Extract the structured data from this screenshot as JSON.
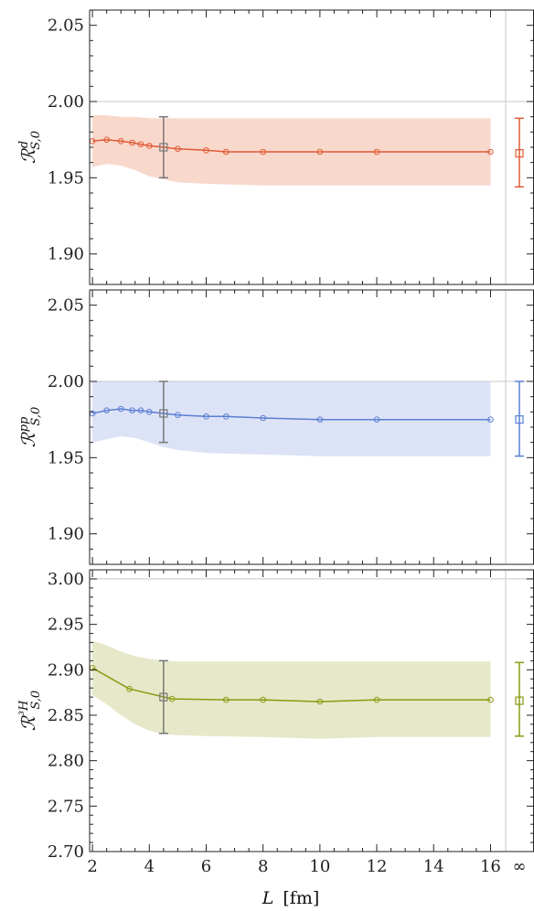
{
  "chart_data": [
    {
      "type": "line",
      "ylabel": "R^d_{S,0}",
      "ylabel_main": "ℛ",
      "ylabel_super": "d",
      "ylabel_sub": "S,0",
      "ylim": [
        1.88,
        2.06
      ],
      "yticks": [
        1.9,
        1.95,
        2.0,
        2.05
      ],
      "ytick_labels": [
        "1.90",
        "1.95",
        "2.00",
        "2.05"
      ],
      "reference_line": 2.0,
      "color": "#e05a35",
      "band_color": "#f9d8cc",
      "series": [
        {
          "x": [
            2.0,
            2.5,
            3.0,
            3.4,
            3.7,
            4.0,
            5.0,
            6.0,
            6.7,
            8.0,
            10.0,
            12.0,
            16.0
          ],
          "values": [
            1.974,
            1.975,
            1.974,
            1.973,
            1.972,
            1.971,
            1.969,
            1.968,
            1.967,
            1.967,
            1.967,
            1.967,
            1.967
          ]
        }
      ],
      "band": {
        "x": [
          2.0,
          2.5,
          3.0,
          3.5,
          4.0,
          4.5,
          5.0,
          6.0,
          8.0,
          10.0,
          12.0,
          16.0
        ],
        "upper": [
          1.991,
          1.991,
          1.99,
          1.99,
          1.989,
          1.989,
          1.989,
          1.989,
          1.989,
          1.989,
          1.989,
          1.989
        ],
        "lower": [
          1.957,
          1.959,
          1.958,
          1.955,
          1.951,
          1.949,
          1.947,
          1.946,
          1.945,
          1.945,
          1.945,
          1.945
        ]
      },
      "marker_point": {
        "x": 4.5,
        "y": 1.97,
        "err_low": 1.95,
        "err_high": 1.99
      },
      "infinity_point": {
        "y": 1.966,
        "err_low": 1.944,
        "err_high": 1.989
      }
    },
    {
      "type": "line",
      "ylabel": "R^pp_{S,0}",
      "ylabel_main": "ℛ",
      "ylabel_super": "pp",
      "ylabel_sub": "S,0",
      "ylim": [
        1.88,
        2.06
      ],
      "yticks": [
        1.9,
        1.95,
        2.0,
        2.05
      ],
      "ytick_labels": [
        "1.90",
        "1.95",
        "2.00",
        "2.05"
      ],
      "reference_line": 2.0,
      "color": "#5a7fd4",
      "band_color": "#dde3f6",
      "series": [
        {
          "x": [
            2.0,
            2.5,
            3.0,
            3.4,
            3.7,
            4.0,
            5.0,
            6.0,
            6.7,
            8.0,
            10.0,
            12.0,
            16.0
          ],
          "values": [
            1.979,
            1.981,
            1.982,
            1.981,
            1.981,
            1.98,
            1.978,
            1.977,
            1.977,
            1.976,
            1.975,
            1.975,
            1.975
          ]
        }
      ],
      "band": {
        "x": [
          2.0,
          2.5,
          3.0,
          3.5,
          4.0,
          4.5,
          5.0,
          6.0,
          8.0,
          10.0,
          12.0,
          16.0
        ],
        "upper": [
          2.0,
          2.0,
          2.0,
          2.0,
          2.0,
          2.0,
          2.0,
          2.0,
          2.0,
          2.0,
          2.0,
          2.0
        ],
        "lower": [
          1.96,
          1.962,
          1.964,
          1.963,
          1.96,
          1.957,
          1.955,
          1.953,
          1.952,
          1.951,
          1.951,
          1.951
        ]
      },
      "marker_point": {
        "x": 4.5,
        "y": 1.979,
        "err_low": 1.96,
        "err_high": 2.0
      },
      "infinity_point": {
        "y": 1.975,
        "err_low": 1.951,
        "err_high": 2.0
      }
    },
    {
      "type": "line",
      "ylabel": "R^3He_{S,0}",
      "ylabel_main": "ℛ",
      "ylabel_super": "³H",
      "ylabel_sub": "S,0",
      "ylim": [
        2.7,
        3.01
      ],
      "yticks": [
        2.7,
        2.75,
        2.8,
        2.85,
        2.9,
        2.95,
        3.0
      ],
      "ytick_labels": [
        "2.70",
        "2.75",
        "2.80",
        "2.85",
        "2.90",
        "2.95",
        "3.00"
      ],
      "reference_line": 3.0,
      "color": "#8a9a10",
      "band_color": "#e6e8c9",
      "series": [
        {
          "x": [
            2.0,
            3.3,
            4.8,
            6.7,
            8.0,
            10.0,
            12.0,
            16.0
          ],
          "values": [
            2.902,
            2.879,
            2.868,
            2.867,
            2.867,
            2.865,
            2.867,
            2.867
          ]
        }
      ],
      "band": {
        "x": [
          2.0,
          2.5,
          3.0,
          3.5,
          4.0,
          4.5,
          5.0,
          6.0,
          8.0,
          10.0,
          12.0,
          16.0
        ],
        "upper": [
          2.932,
          2.927,
          2.92,
          2.915,
          2.912,
          2.91,
          2.909,
          2.909,
          2.909,
          2.909,
          2.909,
          2.909
        ],
        "lower": [
          2.872,
          2.862,
          2.85,
          2.84,
          2.833,
          2.829,
          2.828,
          2.827,
          2.826,
          2.824,
          2.826,
          2.826
        ]
      },
      "marker_point": {
        "x": 4.5,
        "y": 2.87,
        "err_low": 2.83,
        "err_high": 2.91
      },
      "infinity_point": {
        "y": 2.866,
        "err_low": 2.827,
        "err_high": 2.908
      }
    }
  ],
  "xaxis": {
    "label": "L [fm]",
    "label_italic": "L",
    "label_unit": "[fm]",
    "xlim": [
      1.9,
      16.5
    ],
    "xticks": [
      2,
      4,
      6,
      8,
      10,
      12,
      14,
      16
    ],
    "xtick_labels": [
      "2",
      "4",
      "6",
      "8",
      "10",
      "12",
      "14",
      "16"
    ],
    "infinity_label": "∞"
  },
  "marker_color": "#777777"
}
